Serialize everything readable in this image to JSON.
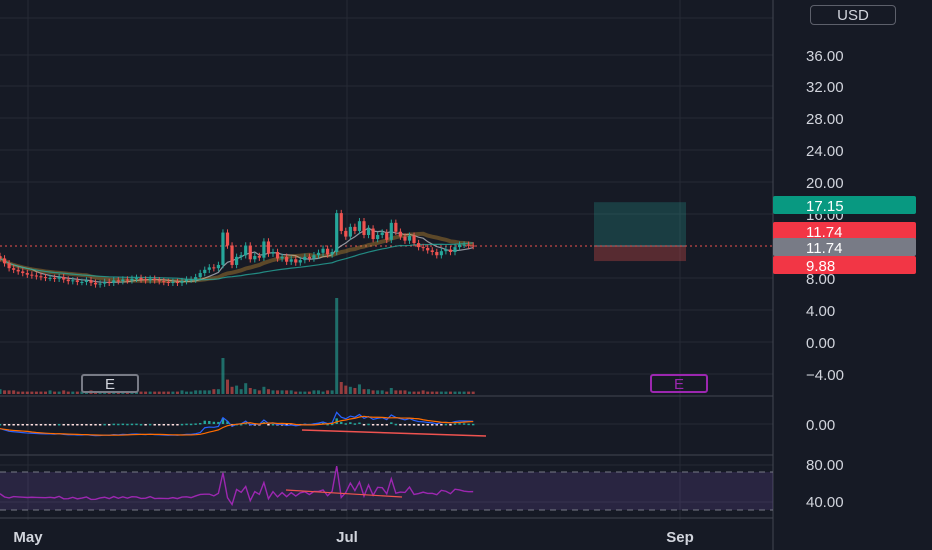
{
  "currency": "USD",
  "price_axis": {
    "ticks": [
      "36.00",
      "32.00",
      "28.00",
      "24.00",
      "20.00",
      "16.00",
      "8.00",
      "4.00",
      "0.00",
      "−4.00"
    ],
    "tags": [
      {
        "label": "17.15",
        "color": "#089981"
      },
      {
        "label": "11.74",
        "color": "#f23645"
      },
      {
        "label": "11.74",
        "color": "#787b86"
      },
      {
        "label": "9.88",
        "color": "#f23645"
      }
    ]
  },
  "oscillator_axis": {
    "ticks": [
      "0.00"
    ]
  },
  "rsi_axis": {
    "ticks": [
      "80.00",
      "40.00"
    ]
  },
  "time_axis": {
    "labels": [
      "May",
      "Jul",
      "Sep"
    ]
  },
  "earnings_markers": [
    {
      "label": "E",
      "color": "#787b86"
    },
    {
      "label": "E",
      "color": "#9c27b0"
    }
  ],
  "colors": {
    "background": "#161a25",
    "up": "#26a69a",
    "down": "#ef5350",
    "rsi": "#9c27b0",
    "grid": "#262a35"
  },
  "chart_data": {
    "type": "candlestick",
    "last_price": 11.74,
    "position": {
      "target": 17.15,
      "entry": 11.74,
      "stop": 9.88
    },
    "rsi_levels": [
      80,
      40
    ],
    "closes": [
      10.2,
      9.6,
      9.0,
      8.8,
      8.6,
      8.4,
      8.2,
      8.1,
      8.0,
      7.9,
      7.8,
      7.8,
      7.7,
      7.9,
      7.6,
      7.4,
      7.5,
      7.3,
      7.3,
      7.5,
      7.2,
      7.0,
      7.1,
      7.3,
      7.2,
      7.5,
      7.4,
      7.6,
      7.5,
      7.7,
      7.8,
      7.6,
      7.5,
      7.7,
      7.5,
      7.4,
      7.3,
      7.2,
      7.3,
      7.2,
      7.4,
      7.6,
      7.6,
      7.9,
      8.4,
      8.8,
      9.1,
      9.0,
      9.4,
      13.4,
      11.8,
      9.4,
      10.4,
      10.6,
      11.8,
      10.1,
      10.5,
      10.3,
      12.3,
      10.8,
      11.0,
      10.2,
      10.4,
      9.8,
      10.1,
      9.7,
      10.0,
      10.4,
      10.2,
      10.6,
      10.9,
      11.4,
      10.7,
      11.0,
      15.8,
      13.6,
      12.9,
      14.1,
      13.6,
      14.8,
      13.1,
      13.9,
      12.6,
      13.1,
      13.4,
      12.5,
      14.6,
      13.5,
      12.9,
      12.4,
      13.0,
      12.1,
      11.6,
      11.5,
      11.2,
      11.0,
      10.6,
      11.1,
      11.3,
      11.0,
      11.6,
      11.9,
      11.9,
      11.8,
      11.74
    ],
    "volumes": [
      4,
      3,
      3,
      3,
      2,
      2,
      2,
      2,
      2,
      2,
      2,
      3,
      2,
      2,
      3,
      2,
      2,
      2,
      2,
      2,
      3,
      2,
      2,
      2,
      2,
      2,
      2,
      2,
      2,
      2,
      2,
      2,
      2,
      2,
      2,
      2,
      2,
      2,
      2,
      2,
      3,
      2,
      2,
      3,
      3,
      3,
      3,
      4,
      4,
      30,
      12,
      6,
      7,
      4,
      9,
      5,
      4,
      3,
      6,
      4,
      3,
      3,
      3,
      3,
      3,
      2,
      2,
      2,
      2,
      3,
      3,
      2,
      3,
      3,
      80,
      10,
      7,
      6,
      5,
      8,
      4,
      4,
      3,
      3,
      3,
      2,
      5,
      3,
      3,
      3,
      2,
      2,
      2,
      3,
      2,
      2,
      2,
      2,
      2,
      2,
      2,
      2,
      2,
      2,
      2
    ]
  }
}
